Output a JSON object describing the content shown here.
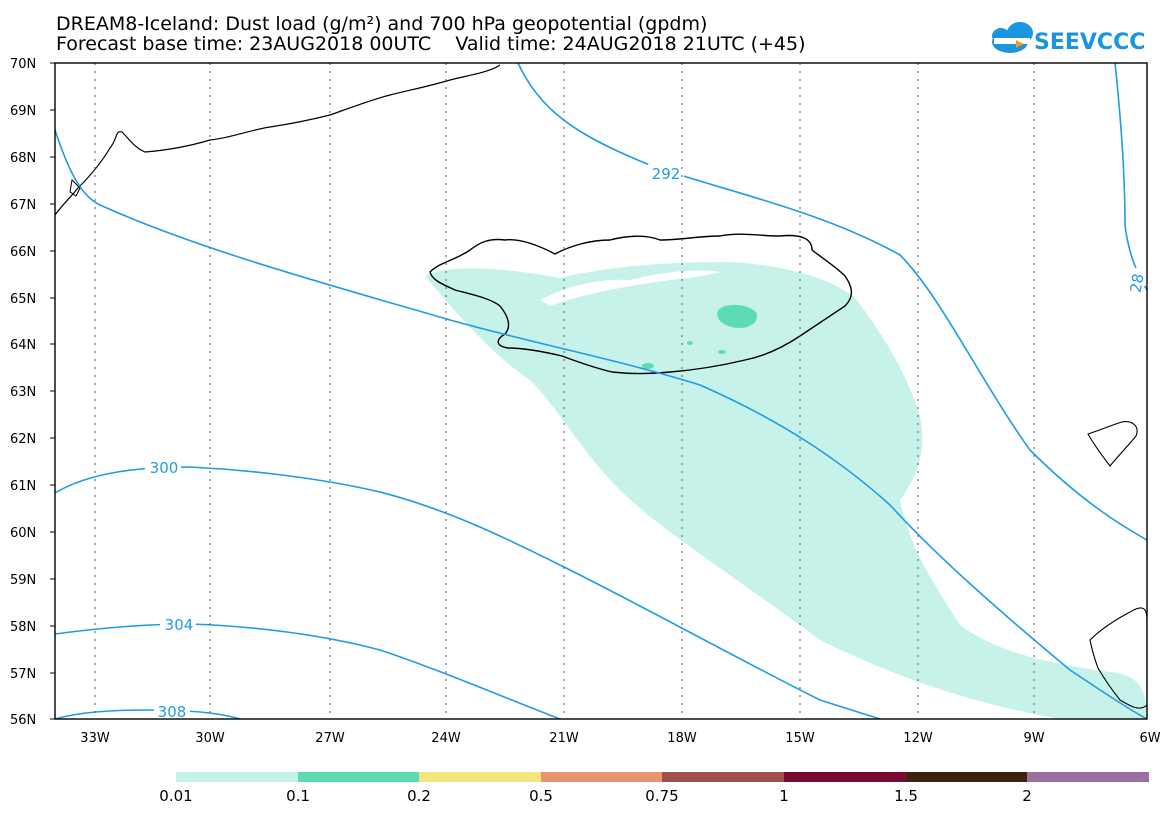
{
  "title": {
    "line1": "DREAM8-Iceland: Dust load (g/m²) and 700 hPa geopotential (gpdm)",
    "line2": "Forecast base time: 23AUG2018 00UTC    Valid time: 24AUG2018 21UTC (+45)"
  },
  "logo": {
    "text": "SEEVCCC"
  },
  "axes": {
    "lat_labels": [
      "70N",
      "69N",
      "68N",
      "67N",
      "66N",
      "65N",
      "64N",
      "63N",
      "62N",
      "61N",
      "60N",
      "59N",
      "58N",
      "57N",
      "56N"
    ],
    "lon_labels": [
      "33W",
      "30W",
      "27W",
      "24W",
      "21W",
      "18W",
      "15W",
      "12W",
      "9W",
      "6W"
    ]
  },
  "contours": {
    "color": "#1e9ce6",
    "labels": [
      "292",
      "300",
      "304",
      "308",
      "28"
    ]
  },
  "colorbar": {
    "colors": [
      "#c6f2ea",
      "#5ddcb4",
      "#f5e680",
      "#e8946c",
      "#a0504a",
      "#7a0a30",
      "#3a2410",
      "#9a70a0"
    ],
    "labels": [
      "0.01",
      "0.1",
      "0.2",
      "0.5",
      "0.75",
      "1",
      "1.5",
      "2"
    ]
  },
  "dust_colors": {
    "low": "#c6f2ea",
    "mid": "#5ddcb4"
  }
}
